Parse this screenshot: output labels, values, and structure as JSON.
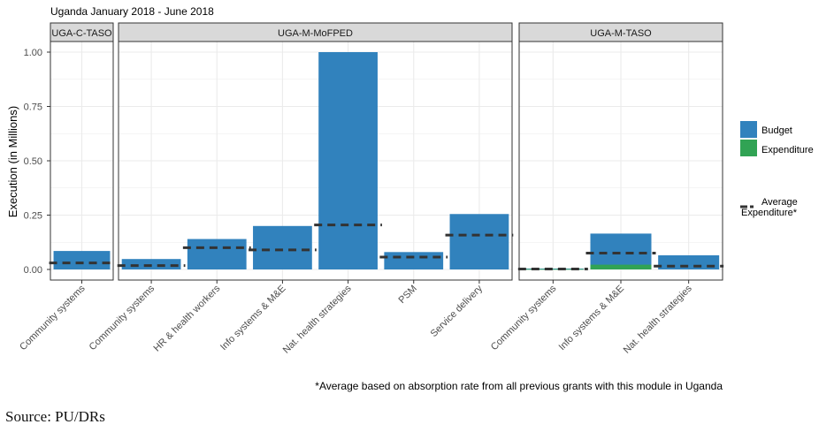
{
  "title": "Uganda January 2018 - June 2018",
  "footnote": "*Average based on absorption rate from all previous grants with this module in Uganda",
  "source": "Source: PU/DRs",
  "chart_data": {
    "type": "bar",
    "title": "Uganda January 2018 - June 2018",
    "xlabel": "",
    "ylabel": "Execution (in Millions)",
    "ylim": [
      0,
      1.05
    ],
    "yticks": [
      "0.00",
      "0.25",
      "0.50",
      "0.75",
      "1.00"
    ],
    "ytick_values": [
      0,
      0.25,
      0.5,
      0.75,
      1.0
    ],
    "grid": true,
    "legend_position": "right",
    "legend": {
      "budget_label": "Budget",
      "expenditure_label": "Expenditure",
      "average_label_line1": "Average",
      "average_label_line2": "Expenditure*"
    },
    "colors": {
      "budget": "#3182bd",
      "expenditure": "#31a354",
      "average": "#333333",
      "strip": "#d9d9d9",
      "grid": "#ebebeb"
    },
    "panels": [
      {
        "name": "UGA-C-TASO",
        "categories": [
          "Community systems"
        ],
        "budget": [
          0.085
        ],
        "expenditure": [
          0
        ],
        "average": [
          0.03
        ]
      },
      {
        "name": "UGA-M-MoFPED",
        "categories": [
          "Community systems",
          "HR & health workers",
          "Info systems & M&E",
          "Nat. health strategies",
          "PSM",
          "Service delivery"
        ],
        "budget": [
          0.048,
          0.14,
          0.2,
          1.0,
          0.08,
          0.255
        ],
        "expenditure": [
          0,
          0,
          0,
          0,
          0,
          0
        ],
        "average": [
          0.018,
          0.1,
          0.09,
          0.205,
          0.057,
          0.158
        ]
      },
      {
        "name": "UGA-M-TASO",
        "categories": [
          "Community systems",
          "Info systems & M&E",
          "Nat. health strategies"
        ],
        "budget": [
          0.004,
          0.165,
          0.065
        ],
        "expenditure": [
          0.002,
          0.022,
          0
        ],
        "average": [
          0.002,
          0.075,
          0.015
        ]
      }
    ]
  }
}
